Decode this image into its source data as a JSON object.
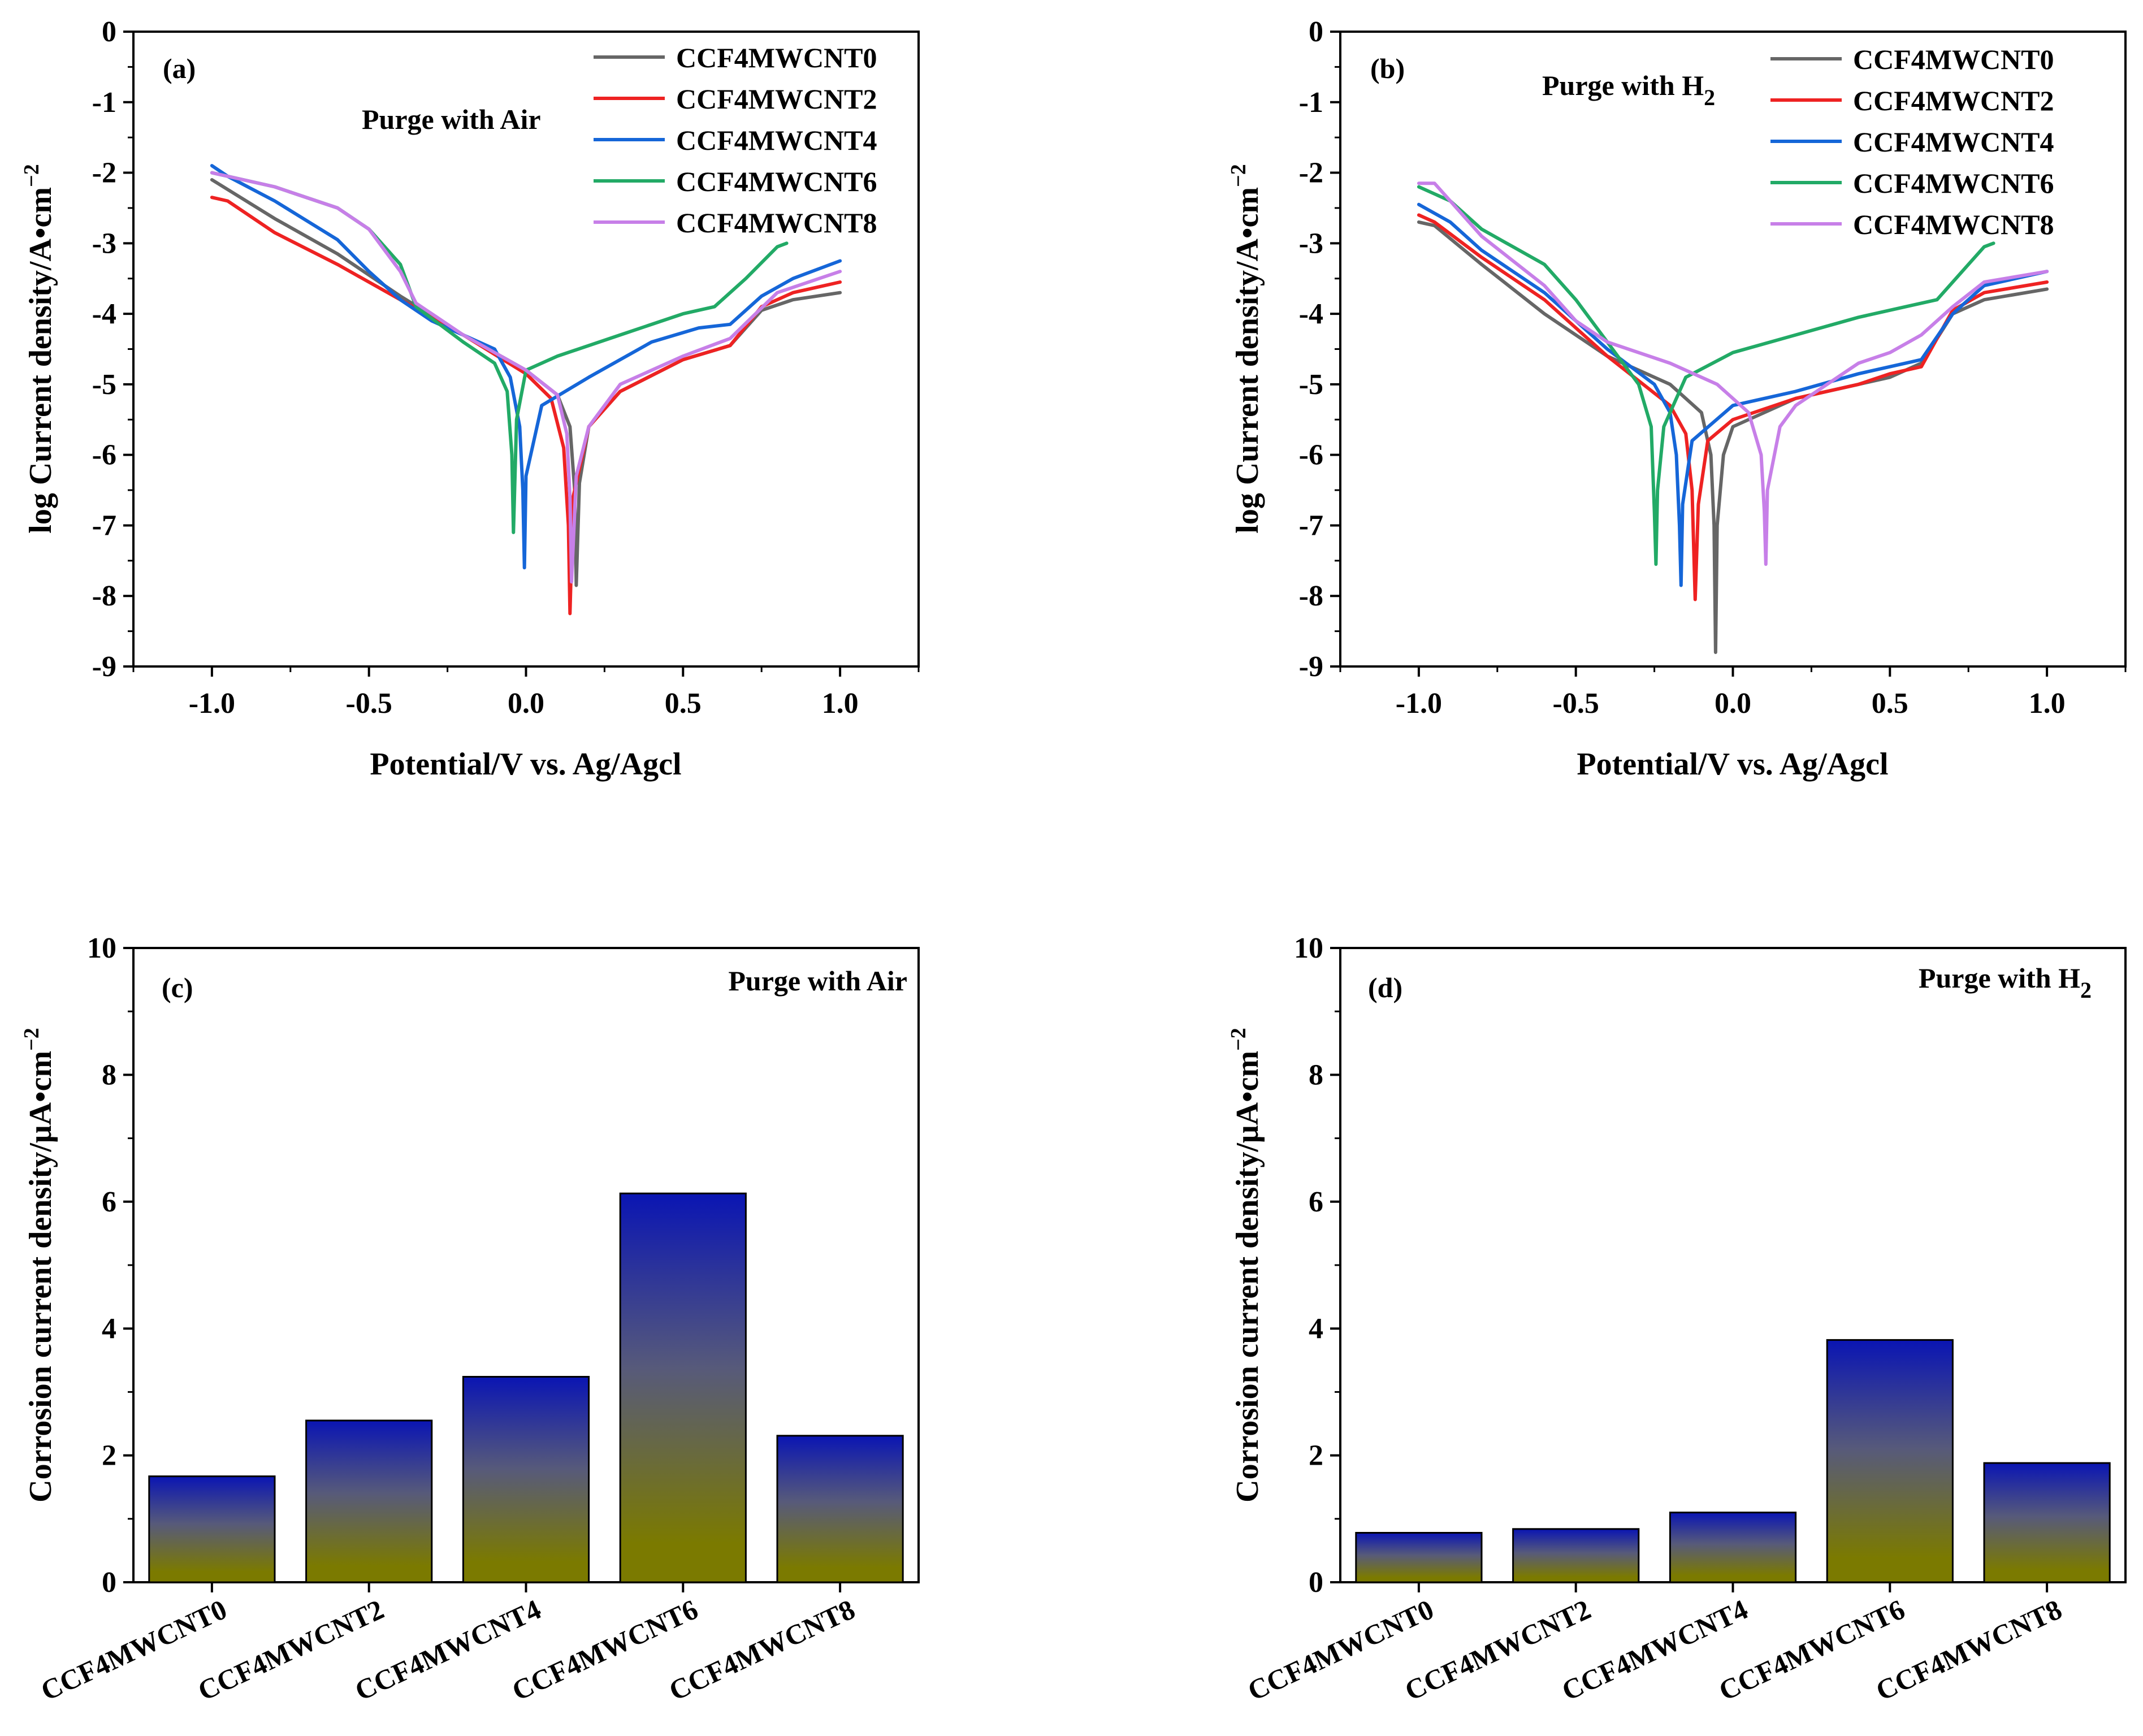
{
  "chart_data": [
    {
      "panel": "(a)",
      "type": "line",
      "annotation": "Purge with Air",
      "xlabel": "Potential/V vs. Ag/Agcl",
      "ylabel_main": "log Current density/A•cm",
      "ylabel_sup": "−2",
      "xlim": [
        -1.25,
        1.25
      ],
      "ylim": [
        -9,
        0
      ],
      "xticks": [
        -1.0,
        -0.5,
        0.0,
        0.5,
        1.0
      ],
      "xtick_labels": [
        "-1.0",
        "-0.5",
        "0.0",
        "0.5",
        "1.0"
      ],
      "yticks": [
        0,
        -1,
        -2,
        -3,
        -4,
        -5,
        -6,
        -7,
        -8,
        -9
      ],
      "ytick_labels": [
        "0",
        "-1",
        "-2",
        "-3",
        "-4",
        "-5",
        "-6",
        "-7",
        "-8",
        "-9"
      ],
      "series": [
        {
          "name": "CCF4MWCNT0",
          "color": "#666666",
          "points": [
            [
              -1.0,
              -2.1
            ],
            [
              -0.8,
              -2.65
            ],
            [
              -0.6,
              -3.15
            ],
            [
              -0.4,
              -3.75
            ],
            [
              -0.2,
              -4.3
            ],
            [
              0.0,
              -4.8
            ],
            [
              0.1,
              -5.15
            ],
            [
              0.14,
              -5.6
            ],
            [
              0.155,
              -6.5
            ],
            [
              0.16,
              -7.85
            ],
            [
              0.17,
              -6.4
            ],
            [
              0.2,
              -5.6
            ],
            [
              0.3,
              -5.1
            ],
            [
              0.5,
              -4.65
            ],
            [
              0.65,
              -4.45
            ],
            [
              0.75,
              -3.95
            ],
            [
              0.85,
              -3.8
            ],
            [
              1.0,
              -3.7
            ]
          ]
        },
        {
          "name": "CCF4MWCNT2",
          "color": "#ee2222",
          "points": [
            [
              -1.0,
              -2.35
            ],
            [
              -0.95,
              -2.4
            ],
            [
              -0.8,
              -2.85
            ],
            [
              -0.6,
              -3.3
            ],
            [
              -0.4,
              -3.8
            ],
            [
              -0.2,
              -4.3
            ],
            [
              0.0,
              -4.85
            ],
            [
              0.08,
              -5.2
            ],
            [
              0.12,
              -5.9
            ],
            [
              0.135,
              -7.0
            ],
            [
              0.14,
              -8.25
            ],
            [
              0.15,
              -6.6
            ],
            [
              0.2,
              -5.6
            ],
            [
              0.3,
              -5.1
            ],
            [
              0.5,
              -4.65
            ],
            [
              0.65,
              -4.45
            ],
            [
              0.75,
              -3.9
            ],
            [
              0.85,
              -3.7
            ],
            [
              1.0,
              -3.55
            ]
          ]
        },
        {
          "name": "CCF4MWCNT4",
          "color": "#1566d8",
          "points": [
            [
              -1.0,
              -1.9
            ],
            [
              -0.95,
              -2.05
            ],
            [
              -0.8,
              -2.4
            ],
            [
              -0.6,
              -2.95
            ],
            [
              -0.5,
              -3.4
            ],
            [
              -0.4,
              -3.8
            ],
            [
              -0.3,
              -4.1
            ],
            [
              -0.1,
              -4.5
            ],
            [
              -0.05,
              -4.9
            ],
            [
              -0.02,
              -5.6
            ],
            [
              -0.01,
              -6.5
            ],
            [
              -0.005,
              -7.6
            ],
            [
              0.0,
              -6.3
            ],
            [
              0.05,
              -5.3
            ],
            [
              0.2,
              -4.9
            ],
            [
              0.4,
              -4.4
            ],
            [
              0.55,
              -4.2
            ],
            [
              0.65,
              -4.15
            ],
            [
              0.75,
              -3.75
            ],
            [
              0.85,
              -3.5
            ],
            [
              1.0,
              -3.25
            ]
          ]
        },
        {
          "name": "CCF4MWCNT6",
          "color": "#22aa66",
          "points": [
            [
              -1.0,
              -2.0
            ],
            [
              -0.8,
              -2.2
            ],
            [
              -0.6,
              -2.5
            ],
            [
              -0.5,
              -2.8
            ],
            [
              -0.4,
              -3.3
            ],
            [
              -0.35,
              -3.9
            ],
            [
              -0.2,
              -4.4
            ],
            [
              -0.1,
              -4.7
            ],
            [
              -0.06,
              -5.1
            ],
            [
              -0.045,
              -6.0
            ],
            [
              -0.04,
              -7.1
            ],
            [
              -0.03,
              -5.5
            ],
            [
              0.0,
              -4.8
            ],
            [
              0.1,
              -4.6
            ],
            [
              0.3,
              -4.3
            ],
            [
              0.5,
              -4.0
            ],
            [
              0.6,
              -3.9
            ],
            [
              0.7,
              -3.5
            ],
            [
              0.8,
              -3.05
            ],
            [
              0.83,
              -3.0
            ]
          ]
        },
        {
          "name": "CCF4MWCNT8",
          "color": "#c77fe8",
          "points": [
            [
              -1.0,
              -2.0
            ],
            [
              -0.8,
              -2.2
            ],
            [
              -0.6,
              -2.5
            ],
            [
              -0.5,
              -2.8
            ],
            [
              -0.4,
              -3.4
            ],
            [
              -0.35,
              -3.85
            ],
            [
              -0.2,
              -4.3
            ],
            [
              0.0,
              -4.8
            ],
            [
              0.1,
              -5.15
            ],
            [
              0.13,
              -5.7
            ],
            [
              0.14,
              -6.6
            ],
            [
              0.145,
              -7.8
            ],
            [
              0.16,
              -6.3
            ],
            [
              0.2,
              -5.6
            ],
            [
              0.3,
              -5.0
            ],
            [
              0.5,
              -4.6
            ],
            [
              0.65,
              -4.35
            ],
            [
              0.8,
              -3.7
            ],
            [
              1.0,
              -3.4
            ]
          ]
        }
      ]
    },
    {
      "panel": "(b)",
      "type": "line",
      "annotation_main": "Purge with H",
      "annotation_sub": "2",
      "xlabel": "Potential/V vs. Ag/Agcl",
      "ylabel_main": "log Current density/A•cm",
      "ylabel_sup": "−2",
      "xlim": [
        -1.25,
        1.25
      ],
      "ylim": [
        -9,
        0
      ],
      "xticks": [
        -1.0,
        -0.5,
        0.0,
        0.5,
        1.0
      ],
      "xtick_labels": [
        "-1.0",
        "-0.5",
        "0.0",
        "0.5",
        "1.0"
      ],
      "yticks": [
        0,
        -1,
        -2,
        -3,
        -4,
        -5,
        -6,
        -7,
        -8,
        -9
      ],
      "ytick_labels": [
        "0",
        "-1",
        "-2",
        "-3",
        "-4",
        "-5",
        "-6",
        "-7",
        "-8",
        "-9"
      ],
      "series": [
        {
          "name": "CCF4MWCNT0",
          "color": "#666666",
          "points": [
            [
              -1.0,
              -2.7
            ],
            [
              -0.95,
              -2.75
            ],
            [
              -0.8,
              -3.3
            ],
            [
              -0.6,
              -4.0
            ],
            [
              -0.4,
              -4.6
            ],
            [
              -0.2,
              -5.0
            ],
            [
              -0.1,
              -5.4
            ],
            [
              -0.07,
              -6.0
            ],
            [
              -0.06,
              -7.0
            ],
            [
              -0.055,
              -8.8
            ],
            [
              -0.05,
              -7.0
            ],
            [
              -0.03,
              -6.0
            ],
            [
              0.0,
              -5.6
            ],
            [
              0.2,
              -5.2
            ],
            [
              0.4,
              -5.0
            ],
            [
              0.5,
              -4.9
            ],
            [
              0.6,
              -4.7
            ],
            [
              0.7,
              -4.0
            ],
            [
              0.8,
              -3.8
            ],
            [
              1.0,
              -3.65
            ]
          ]
        },
        {
          "name": "CCF4MWCNT2",
          "color": "#ee2222",
          "points": [
            [
              -1.0,
              -2.6
            ],
            [
              -0.95,
              -2.7
            ],
            [
              -0.8,
              -3.2
            ],
            [
              -0.6,
              -3.8
            ],
            [
              -0.4,
              -4.6
            ],
            [
              -0.2,
              -5.3
            ],
            [
              -0.15,
              -5.7
            ],
            [
              -0.13,
              -6.5
            ],
            [
              -0.12,
              -8.05
            ],
            [
              -0.11,
              -6.7
            ],
            [
              -0.08,
              -5.8
            ],
            [
              0.0,
              -5.5
            ],
            [
              0.2,
              -5.2
            ],
            [
              0.4,
              -5.0
            ],
            [
              0.5,
              -4.85
            ],
            [
              0.6,
              -4.75
            ],
            [
              0.7,
              -3.95
            ],
            [
              0.8,
              -3.7
            ],
            [
              1.0,
              -3.55
            ]
          ]
        },
        {
          "name": "CCF4MWCNT4",
          "color": "#1566d8",
          "points": [
            [
              -1.0,
              -2.45
            ],
            [
              -0.9,
              -2.7
            ],
            [
              -0.8,
              -3.1
            ],
            [
              -0.6,
              -3.7
            ],
            [
              -0.4,
              -4.5
            ],
            [
              -0.25,
              -5.0
            ],
            [
              -0.2,
              -5.4
            ],
            [
              -0.18,
              -6.0
            ],
            [
              -0.17,
              -7.0
            ],
            [
              -0.165,
              -7.85
            ],
            [
              -0.16,
              -6.7
            ],
            [
              -0.13,
              -5.8
            ],
            [
              0.0,
              -5.3
            ],
            [
              0.2,
              -5.1
            ],
            [
              0.4,
              -4.85
            ],
            [
              0.5,
              -4.75
            ],
            [
              0.6,
              -4.65
            ],
            [
              0.7,
              -4.0
            ],
            [
              0.8,
              -3.6
            ],
            [
              1.0,
              -3.4
            ]
          ]
        },
        {
          "name": "CCF4MWCNT6",
          "color": "#22aa66",
          "points": [
            [
              -1.0,
              -2.2
            ],
            [
              -0.9,
              -2.4
            ],
            [
              -0.8,
              -2.8
            ],
            [
              -0.6,
              -3.3
            ],
            [
              -0.5,
              -3.8
            ],
            [
              -0.4,
              -4.4
            ],
            [
              -0.3,
              -5.0
            ],
            [
              -0.26,
              -5.6
            ],
            [
              -0.25,
              -6.8
            ],
            [
              -0.245,
              -7.55
            ],
            [
              -0.24,
              -6.5
            ],
            [
              -0.22,
              -5.6
            ],
            [
              -0.15,
              -4.9
            ],
            [
              0.0,
              -4.55
            ],
            [
              0.2,
              -4.3
            ],
            [
              0.4,
              -4.05
            ],
            [
              0.55,
              -3.9
            ],
            [
              0.65,
              -3.8
            ],
            [
              0.75,
              -3.3
            ],
            [
              0.8,
              -3.05
            ],
            [
              0.83,
              -3.0
            ]
          ]
        },
        {
          "name": "CCF4MWCNT8",
          "color": "#c77fe8",
          "points": [
            [
              -1.0,
              -2.15
            ],
            [
              -0.95,
              -2.15
            ],
            [
              -0.9,
              -2.4
            ],
            [
              -0.8,
              -2.9
            ],
            [
              -0.6,
              -3.6
            ],
            [
              -0.5,
              -4.1
            ],
            [
              -0.4,
              -4.4
            ],
            [
              -0.2,
              -4.7
            ],
            [
              -0.05,
              -5.0
            ],
            [
              0.05,
              -5.4
            ],
            [
              0.09,
              -6.0
            ],
            [
              0.1,
              -6.8
            ],
            [
              0.105,
              -7.55
            ],
            [
              0.11,
              -6.5
            ],
            [
              0.15,
              -5.6
            ],
            [
              0.2,
              -5.3
            ],
            [
              0.3,
              -5.0
            ],
            [
              0.4,
              -4.7
            ],
            [
              0.5,
              -4.55
            ],
            [
              0.6,
              -4.3
            ],
            [
              0.7,
              -3.9
            ],
            [
              0.8,
              -3.55
            ],
            [
              1.0,
              -3.4
            ]
          ]
        }
      ]
    },
    {
      "panel": "(c)",
      "type": "bar",
      "annotation": "Purge with Air",
      "ylabel_main": "Corrosion current density/μA•cm",
      "ylabel_sup": "−2",
      "ylim": [
        0,
        10
      ],
      "yticks": [
        0,
        2,
        4,
        6,
        8,
        10
      ],
      "ytick_labels": [
        "0",
        "2",
        "4",
        "6",
        "8",
        "10"
      ],
      "categories": [
        "CCF4MWCNT0",
        "CCF4MWCNT2",
        "CCF4MWCNT4",
        "CCF4MWCNT6",
        "CCF4MWCNT8"
      ],
      "values": [
        1.67,
        2.55,
        3.24,
        6.13,
        2.31
      ],
      "gradient": {
        "top": "#0a15b3",
        "mid": "#575a7a",
        "bottom": "#7b7a00"
      }
    },
    {
      "panel": "(d)",
      "type": "bar",
      "annotation_main": "Purge with H",
      "annotation_sub": "2",
      "ylabel_main": "Corrosion current density/μA•cm",
      "ylabel_sup": "−2",
      "ylim": [
        0,
        10
      ],
      "yticks": [
        0,
        2,
        4,
        6,
        8,
        10
      ],
      "ytick_labels": [
        "0",
        "2",
        "4",
        "6",
        "8",
        "10"
      ],
      "categories": [
        "CCF4MWCNT0",
        "CCF4MWCNT2",
        "CCF4MWCNT4",
        "CCF4MWCNT6",
        "CCF4MWCNT8"
      ],
      "values": [
        0.78,
        0.84,
        1.1,
        3.82,
        1.88
      ],
      "gradient": {
        "top": "#0a15b3",
        "mid": "#575a7a",
        "bottom": "#7b7a00"
      }
    }
  ]
}
